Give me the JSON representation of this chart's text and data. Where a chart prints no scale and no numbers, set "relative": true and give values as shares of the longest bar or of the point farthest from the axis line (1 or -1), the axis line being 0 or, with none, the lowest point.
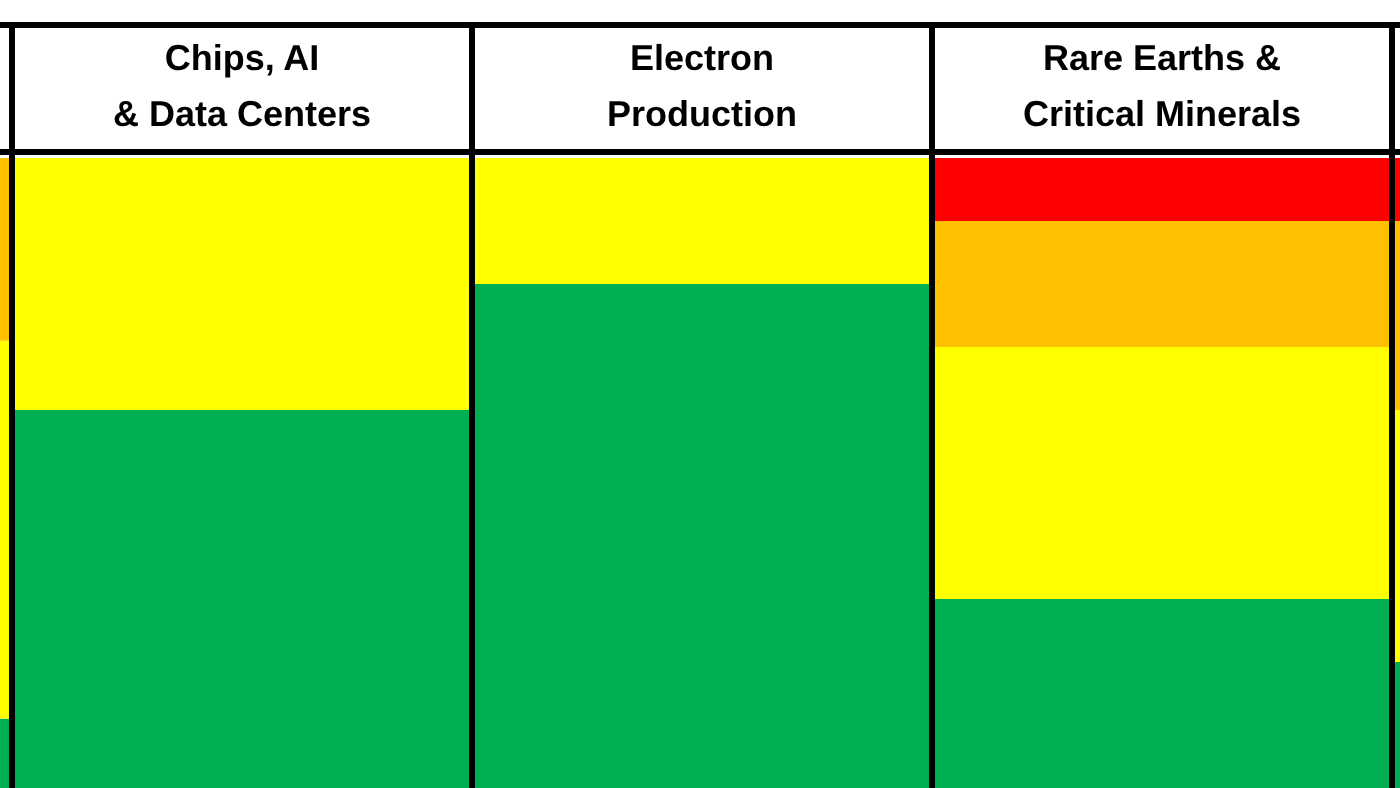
{
  "chart_data": {
    "type": "bar",
    "stacked": true,
    "relative": true,
    "tick_labels": "x",
    "categories": [
      null,
      "Chips, AI\n& Data Centers",
      "Electron\nProduction",
      "Rare Earths &\nCritical Minerals",
      null
    ],
    "series": [
      {
        "color": "#00b050",
        "values": [
          0.11,
          0.6,
          0.8,
          0.3,
          0.2
        ]
      },
      {
        "color": "#ffff00",
        "values": [
          0.6,
          0.4,
          0.2,
          0.4,
          0.4
        ]
      },
      {
        "color": "#ffc000",
        "values": [
          0.29,
          null,
          null,
          0.2,
          0.3
        ]
      },
      {
        "color": "#ff0000",
        "values": [
          null,
          null,
          null,
          0.1,
          0.1
        ]
      }
    ]
  }
}
